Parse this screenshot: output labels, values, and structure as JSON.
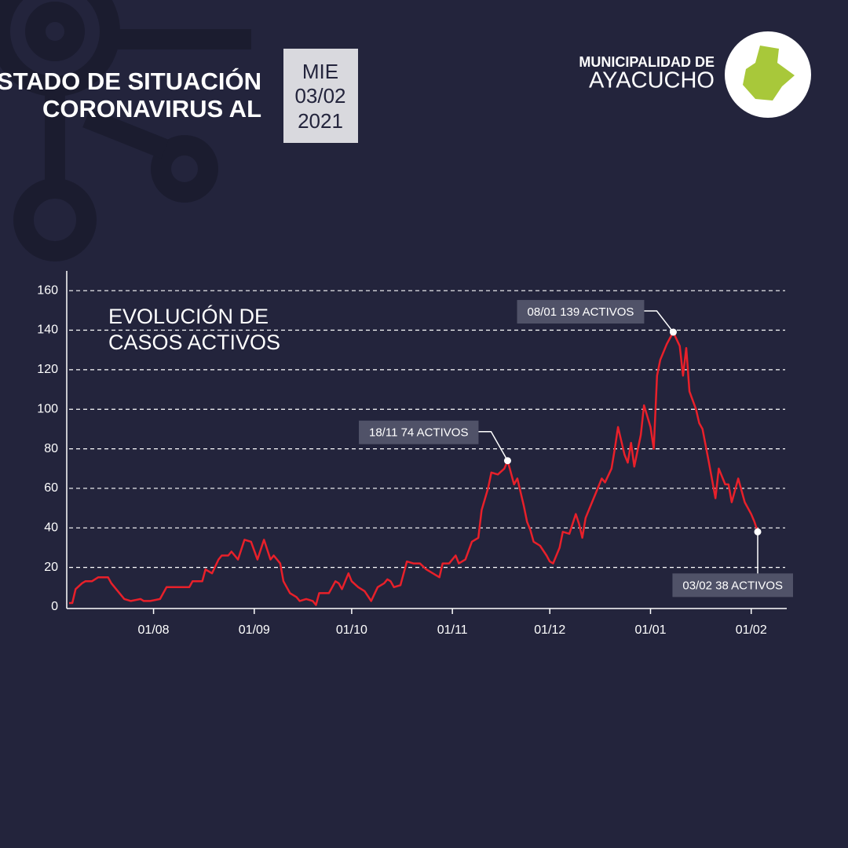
{
  "header": {
    "title": [
      "ESTADO DE SITUACIÓN",
      "CORONAVIRUS AL"
    ],
    "date": [
      "MIE",
      "03/02",
      "2021"
    ],
    "logo": [
      "MUNICIPALIDAD DE",
      "AYACUCHO"
    ]
  },
  "chart_data": {
    "type": "line",
    "title": [
      "EVOLUCIÓN DE",
      "CASOS ACTIVOS"
    ],
    "color": "#e8202a",
    "x": [
      "06/07",
      "07/07",
      "08/07",
      "10/07",
      "11/07",
      "13/07",
      "15/07",
      "18/07",
      "19/07",
      "21/07",
      "23/07",
      "25/07",
      "28/07",
      "29/07",
      "31/07",
      "03/08",
      "05/08",
      "09/08",
      "12/08",
      "13/08",
      "16/08",
      "17/08",
      "19/08",
      "21/08",
      "22/08",
      "24/08",
      "25/08",
      "27/08",
      "29/08",
      "31/08",
      "02/09",
      "04/09",
      "06/09",
      "07/09",
      "09/09",
      "10/09",
      "12/09",
      "14/09",
      "15/09",
      "17/09",
      "19/09",
      "20/09",
      "21/09",
      "24/09",
      "26/09",
      "27/09",
      "28/09",
      "30/09",
      "01/10",
      "03/10",
      "05/10",
      "07/10",
      "09/10",
      "11/10",
      "12/10",
      "13/10",
      "14/10",
      "16/10",
      "18/10",
      "20/10",
      "22/10",
      "24/10",
      "26/10",
      "28/10",
      "29/10",
      "31/10",
      "02/11",
      "03/11",
      "05/11",
      "07/11",
      "09/11",
      "10/11",
      "12/11",
      "13/11",
      "15/11",
      "17/11",
      "18/11",
      "20/11",
      "21/11",
      "23/11",
      "24/11",
      "25/11",
      "26/11",
      "28/11",
      "30/11",
      "01/12",
      "02/12",
      "04/12",
      "05/12",
      "07/12",
      "08/12",
      "09/12",
      "10/12",
      "11/12",
      "12/12",
      "14/12",
      "15/12",
      "17/12",
      "18/12",
      "20/12",
      "21/12",
      "22/12",
      "24/12",
      "25/12",
      "26/12",
      "27/12",
      "29/12",
      "30/12",
      "01/01",
      "02/01",
      "03/01",
      "04/01",
      "06/01",
      "08/01",
      "10/01",
      "11/01",
      "12/01",
      "13/01",
      "15/01",
      "16/01",
      "17/01",
      "19/01",
      "21/01",
      "22/01",
      "24/01",
      "25/01",
      "26/01",
      "28/01",
      "30/01",
      "01/02",
      "02/02",
      "03/02"
    ],
    "values": [
      2,
      2,
      9,
      12,
      13,
      13,
      15,
      15,
      12,
      8,
      4,
      3,
      4,
      3,
      3,
      4,
      10,
      10,
      10,
      13,
      13,
      19,
      17,
      24,
      26,
      26,
      28,
      24,
      34,
      33,
      24,
      34,
      24,
      26,
      22,
      13,
      7,
      5,
      3,
      4,
      3,
      1,
      7,
      7,
      13,
      12,
      9,
      17,
      13,
      10,
      8,
      3,
      10,
      12,
      14,
      13,
      10,
      11,
      23,
      22,
      22,
      19,
      17,
      15,
      22,
      22,
      26,
      22,
      24,
      33,
      35,
      49,
      60,
      68,
      67,
      70,
      74,
      62,
      65,
      51,
      43,
      39,
      33,
      31,
      26,
      23,
      22,
      30,
      38,
      37,
      42,
      47,
      42,
      35,
      45,
      53,
      57,
      65,
      63,
      70,
      80,
      91,
      77,
      73,
      83,
      71,
      87,
      102,
      91,
      80,
      117,
      125,
      133,
      139,
      132,
      117,
      131,
      109,
      100,
      93,
      90,
      73,
      55,
      70,
      62,
      62,
      53,
      65,
      53,
      47,
      43,
      38
    ],
    "ylim": [
      0,
      170
    ],
    "yticks": [
      0,
      20,
      40,
      60,
      80,
      100,
      120,
      140,
      160
    ],
    "grid": true,
    "xticks": [
      "01/08",
      "01/09",
      "01/10",
      "01/11",
      "01/12",
      "01/01",
      "01/02"
    ],
    "annotations": [
      {
        "x": "18/11",
        "y": 74,
        "label": "18/11  74 ACTIVOS"
      },
      {
        "x": "08/01",
        "y": 139,
        "label": "08/01  139 ACTIVOS"
      },
      {
        "x": "03/02",
        "y": 38,
        "label": "03/02  38 ACTIVOS"
      }
    ]
  }
}
